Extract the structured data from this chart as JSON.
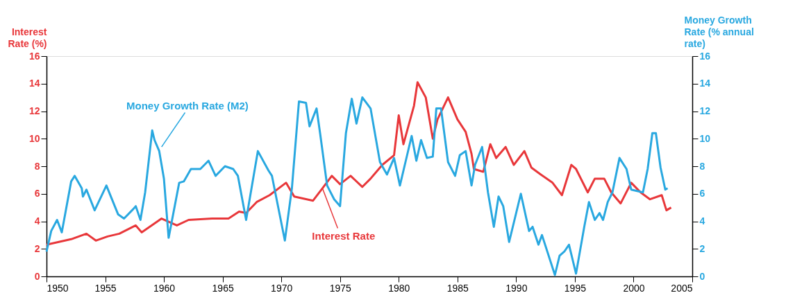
{
  "chart_data": {
    "type": "line",
    "ylabel": "Interest Rate (%)",
    "y2label": "Money Growth Rate (% annual rate)",
    "xlim": [
      1950,
      2005
    ],
    "xticks": [
      1950,
      1955,
      1960,
      1965,
      1970,
      1975,
      1980,
      1985,
      1990,
      1995,
      2000,
      2005
    ],
    "ylim": [
      0,
      16
    ],
    "yticks": [
      0,
      2,
      4,
      6,
      8,
      10,
      12,
      14,
      16
    ],
    "y2lim": [
      0,
      16
    ],
    "y2ticks": [
      0,
      2,
      4,
      6,
      8,
      10,
      12,
      14,
      16
    ],
    "grid": false,
    "marker": "none",
    "line_style": "solid",
    "annotations": [
      {
        "text": "Money Growth Rate (M2)",
        "x": 1959.8,
        "y": 9.4
      },
      {
        "text": "Interest Rate",
        "x": 1973.5,
        "y": 6.4
      }
    ],
    "series": [
      {
        "color": "#e8373a",
        "x": [
          1950.0,
          1952.1,
          1953.4,
          1954.2,
          1955.2,
          1956.2,
          1957.6,
          1958.1,
          1959.8,
          1961.1,
          1962.1,
          1964.1,
          1965.5,
          1966.4,
          1967.0,
          1967.9,
          1969.0,
          1970.4,
          1971.1,
          1972.7,
          1973.5,
          1974.3,
          1975.0,
          1975.9,
          1976.9,
          1977.6,
          1978.6,
          1979.6,
          1980.0,
          1980.4,
          1981.3,
          1981.6,
          1982.3,
          1982.9,
          1983.3,
          1984.2,
          1985.0,
          1985.7,
          1986.2,
          1986.4,
          1987.2,
          1987.8,
          1988.3,
          1989.1,
          1989.8,
          1990.7,
          1991.3,
          1992.1,
          1993.1,
          1993.9,
          1994.7,
          1995.1,
          1996.1,
          1996.7,
          1997.5,
          1998.1,
          1998.9,
          1999.8,
          2000.6,
          2001.4,
          2002.4,
          2002.8,
          2003.2
        ],
        "values": [
          2.3,
          2.7,
          3.1,
          2.6,
          2.9,
          3.1,
          3.7,
          3.2,
          4.2,
          3.7,
          4.1,
          4.2,
          4.2,
          4.7,
          4.6,
          5.4,
          5.9,
          6.8,
          5.8,
          5.5,
          6.4,
          7.3,
          6.7,
          7.3,
          6.5,
          7.1,
          8.1,
          8.8,
          11.7,
          9.6,
          12.4,
          14.1,
          13.0,
          10.0,
          11.4,
          13.0,
          11.4,
          10.5,
          8.9,
          7.8,
          7.6,
          9.6,
          8.6,
          9.4,
          8.1,
          9.1,
          7.9,
          7.4,
          6.8,
          5.9,
          8.1,
          7.8,
          6.1,
          7.1,
          7.1,
          6.1,
          5.3,
          6.8,
          6.1,
          5.6,
          5.9,
          4.8,
          5.0
        ]
      },
      {
        "color": "#29a8e0",
        "axis": "y2",
        "x": [
          1950.0,
          1950.4,
          1950.9,
          1951.3,
          1952.1,
          1952.4,
          1953.0,
          1953.1,
          1953.4,
          1954.1,
          1955.1,
          1956.1,
          1956.6,
          1957.4,
          1957.6,
          1958.0,
          1958.4,
          1959.0,
          1959.2,
          1959.6,
          1960.0,
          1960.4,
          1961.3,
          1961.7,
          1962.3,
          1963.1,
          1963.8,
          1964.4,
          1965.2,
          1965.9,
          1966.3,
          1967.0,
          1968.0,
          1968.9,
          1969.2,
          1970.3,
          1970.9,
          1971.5,
          1972.1,
          1972.4,
          1973.0,
          1973.3,
          1973.9,
          1974.5,
          1975.0,
          1975.5,
          1976.0,
          1976.4,
          1976.9,
          1977.6,
          1978.4,
          1979.0,
          1979.6,
          1980.1,
          1981.1,
          1981.5,
          1981.9,
          1982.4,
          1982.9,
          1983.2,
          1983.6,
          1984.2,
          1984.8,
          1985.2,
          1985.7,
          1986.2,
          1986.5,
          1987.1,
          1987.6,
          1988.1,
          1988.5,
          1988.9,
          1989.4,
          1990.4,
          1991.1,
          1991.4,
          1991.9,
          1992.2,
          1993.3,
          1993.7,
          1994.1,
          1994.5,
          1995.1,
          1995.8,
          1996.2,
          1996.7,
          1997.1,
          1997.4,
          1997.8,
          1998.2,
          1998.8,
          1999.4,
          1999.8,
          2000.8,
          2001.2,
          2001.6,
          2001.9,
          2002.3,
          2002.7,
          2002.9
        ],
        "values": [
          1.8,
          3.3,
          4.1,
          3.2,
          6.9,
          7.3,
          6.4,
          5.8,
          6.3,
          4.8,
          6.6,
          4.5,
          4.2,
          4.9,
          5.1,
          4.1,
          6.1,
          10.6,
          9.9,
          9.1,
          7.1,
          2.8,
          6.8,
          6.9,
          7.8,
          7.8,
          8.4,
          7.3,
          8.0,
          7.8,
          7.3,
          4.1,
          9.1,
          7.7,
          7.3,
          2.6,
          6.4,
          12.7,
          12.6,
          10.9,
          12.2,
          10.4,
          6.6,
          5.6,
          5.1,
          10.4,
          12.9,
          11.1,
          13.0,
          12.2,
          8.3,
          7.4,
          8.6,
          6.6,
          10.2,
          8.4,
          9.9,
          8.6,
          8.7,
          12.2,
          12.2,
          8.3,
          7.3,
          8.8,
          9.1,
          6.6,
          8.1,
          9.4,
          6.1,
          3.6,
          5.8,
          5.1,
          2.5,
          6.0,
          3.3,
          3.6,
          2.3,
          3.0,
          0.1,
          1.5,
          1.8,
          2.3,
          0.2,
          3.6,
          5.4,
          4.1,
          4.6,
          4.1,
          5.4,
          6.1,
          8.6,
          7.8,
          6.3,
          6.1,
          7.8,
          10.4,
          10.4,
          7.9,
          6.3,
          6.4
        ]
      }
    ]
  }
}
